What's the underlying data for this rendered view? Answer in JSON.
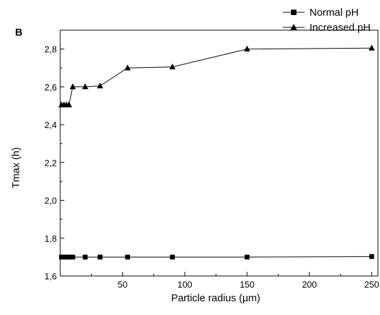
{
  "chart_data": {
    "type": "line",
    "panel_label": "B",
    "xlabel": "Particle radius (µm)",
    "ylabel": "Tmax (h)",
    "xlim": [
      0,
      255
    ],
    "ylim": [
      1.6,
      2.9
    ],
    "xticks": [
      50,
      100,
      150,
      200,
      250
    ],
    "yticks": [
      1.6,
      1.8,
      2.0,
      2.2,
      2.4,
      2.6,
      2.8
    ],
    "xtick_labels": [
      "50",
      "100",
      "150",
      "200",
      "250"
    ],
    "ytick_labels": [
      "1,6",
      "1,8",
      "2,0",
      "2,2",
      "2,4",
      "2,6",
      "2,8"
    ],
    "grid": false,
    "legend_position": "top-right",
    "series": [
      {
        "name": "Normal pH",
        "marker": "square",
        "color": "#000000",
        "x": [
          1,
          3,
          5,
          7,
          10,
          20,
          32,
          54,
          90,
          150,
          250
        ],
        "y": [
          1.7,
          1.7,
          1.7,
          1.7,
          1.7,
          1.7,
          1.7,
          1.7,
          1.7,
          1.7,
          1.703
        ]
      },
      {
        "name": "Increased pH",
        "marker": "triangle",
        "color": "#000000",
        "x": [
          1,
          3,
          5,
          7,
          10,
          20,
          32,
          54,
          90,
          150,
          250
        ],
        "y": [
          2.505,
          2.505,
          2.505,
          2.505,
          2.6,
          2.6,
          2.605,
          2.7,
          2.705,
          2.8,
          2.805
        ]
      }
    ]
  }
}
